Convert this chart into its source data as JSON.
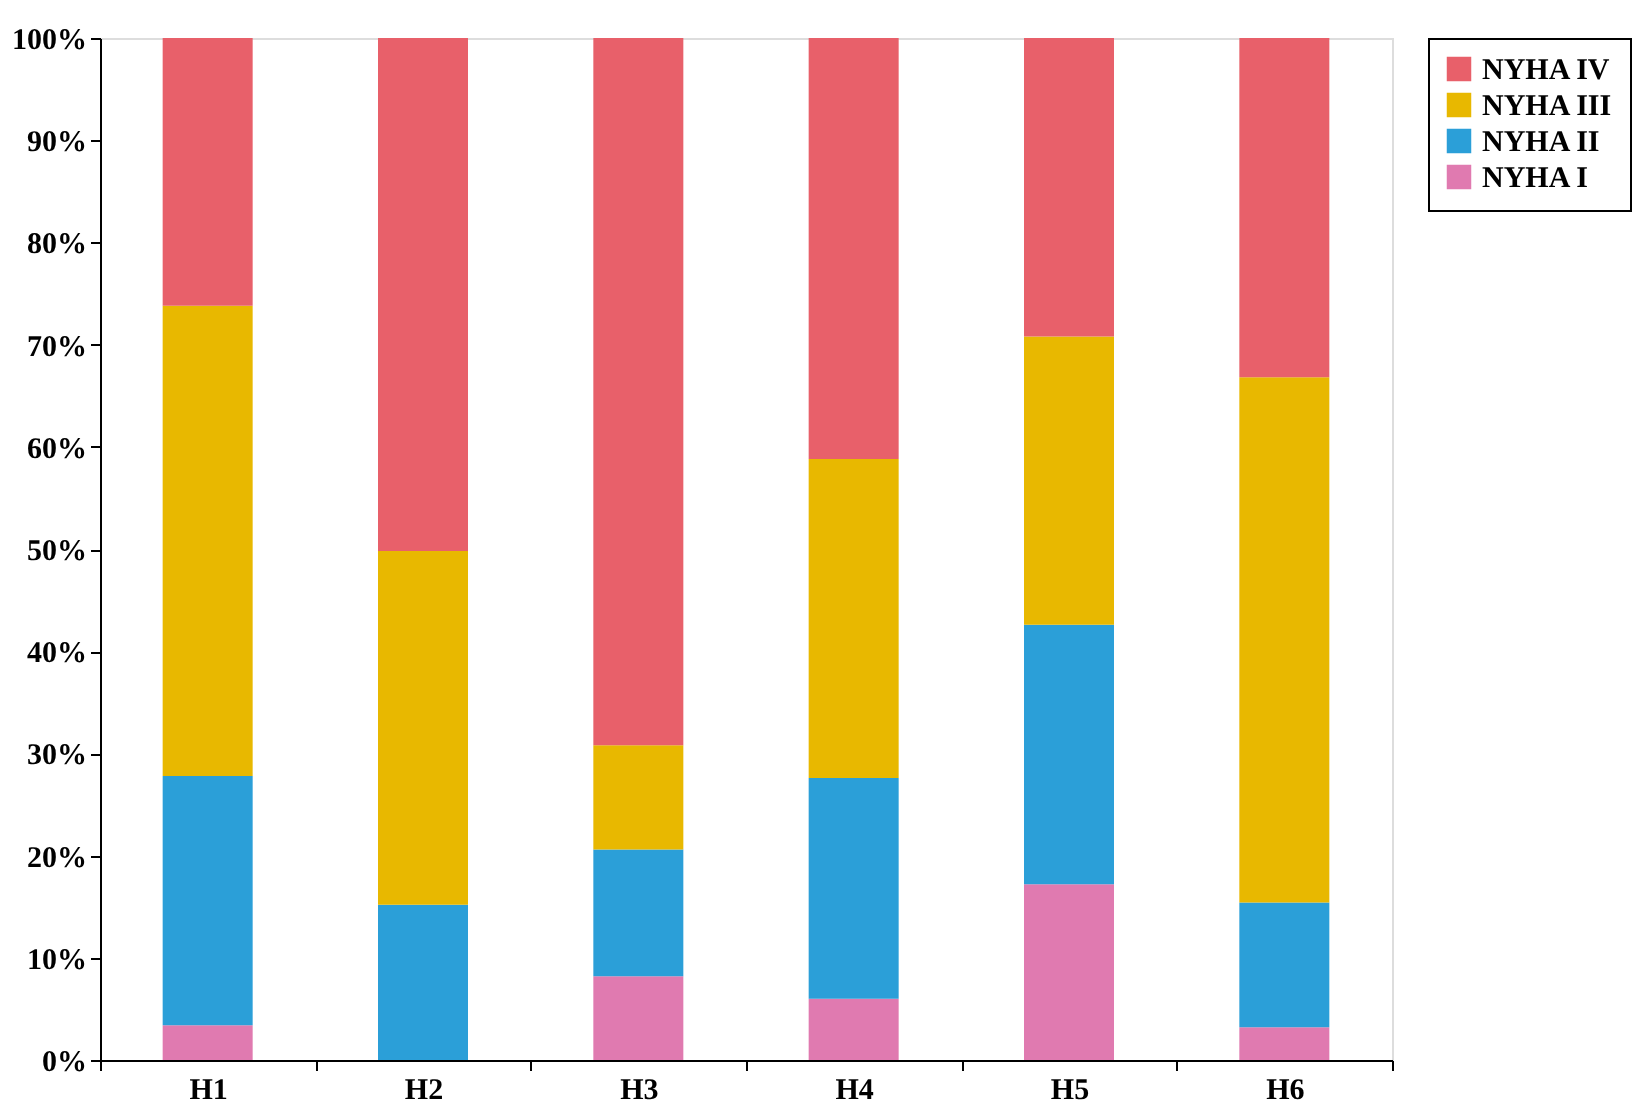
{
  "chart_data": {
    "type": "bar",
    "stacked": true,
    "categories": [
      "H1",
      "H2",
      "H3",
      "H4",
      "H5",
      "H6"
    ],
    "series": [
      {
        "name": "NYHA I",
        "color": "#e07ab0",
        "values": [
          3.4,
          0,
          8.2,
          6,
          17.2,
          3.2
        ]
      },
      {
        "name": "NYHA II",
        "color": "#2b9fd8",
        "values": [
          24.4,
          15.2,
          12.4,
          21.6,
          25.4,
          12.2
        ]
      },
      {
        "name": "NYHA III",
        "color": "#e8b800",
        "values": [
          46,
          34.6,
          10.2,
          31.2,
          28.2,
          51.4
        ]
      },
      {
        "name": "NYHA IV",
        "color": "#e8606a",
        "values": [
          26.2,
          50.2,
          69.2,
          41.2,
          29.2,
          33.2
        ]
      }
    ],
    "ylim": [
      0,
      100
    ],
    "yticks": [
      {
        "value": 0,
        "label": "0%"
      },
      {
        "value": 10,
        "label": "10%"
      },
      {
        "value": 20,
        "label": "20%"
      },
      {
        "value": 30,
        "label": "30%"
      },
      {
        "value": 40,
        "label": "40%"
      },
      {
        "value": 50,
        "label": "50%"
      },
      {
        "value": 60,
        "label": "60%"
      },
      {
        "value": 70,
        "label": "70%"
      },
      {
        "value": 80,
        "label": "80%"
      },
      {
        "value": 90,
        "label": "90%"
      },
      {
        "value": 100,
        "label": "100%"
      }
    ],
    "grid": false,
    "legend": "right"
  }
}
